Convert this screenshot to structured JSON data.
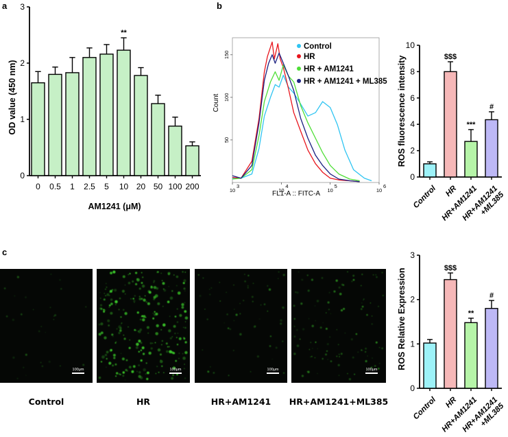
{
  "panel_labels": [
    "a",
    "b",
    "c"
  ],
  "panel_a": {
    "xlabel": "AM1241 (μM)",
    "ylabel": "OD value (450 nm)",
    "ytick_labels": [
      "0",
      "1",
      "2",
      "3"
    ],
    "significance": "**"
  },
  "panel_b_flow": {
    "xlabel": "FL1-A :: FITC-A",
    "ylabel": "Count",
    "ytick_labels": [
      "50",
      "100",
      "150"
    ],
    "xtick_labels": [
      "10",
      "10",
      "10",
      "10"
    ],
    "xtick_exponents": [
      "3",
      "4",
      "5",
      "6"
    ],
    "legend": [
      "Control",
      "HR",
      "HR + AM1241",
      "HR + AM1241 + ML385"
    ]
  },
  "panel_b_bar": {
    "ylabel": "ROS fluorescence intensity",
    "ytick_labels": [
      "0",
      "2",
      "4",
      "6",
      "8",
      "10"
    ],
    "category_labels": [
      "Control",
      "HR",
      "HR+AM1241",
      "HR+AM1241\n+ML385"
    ],
    "annotations": [
      "",
      "$$$",
      "***",
      "#"
    ]
  },
  "panel_c_images": {
    "captions": [
      "Control",
      "HR",
      "HR+AM1241",
      "HR+AM1241+ML385"
    ],
    "scale_bar": "100μm"
  },
  "panel_c_bar": {
    "ylabel": "ROS Relative Expression",
    "ytick_labels": [
      "0",
      "1",
      "2",
      "3"
    ],
    "category_labels": [
      "Control",
      "HR",
      "HR+AM1241",
      "HR+AM1241\n+ML385"
    ],
    "annotations": [
      "",
      "$$$",
      "**",
      "#"
    ]
  },
  "colors": {
    "bar_a": "#c6f0c6",
    "control": "#9df2f8",
    "hr": "#f6b8b8",
    "hr_am1241": "#b6f4a8",
    "hr_am1241_ml385": "#bdb8f6",
    "flow_control": "#2ec4f2",
    "flow_hr": "#e8141c",
    "flow_am1241": "#4ede36",
    "flow_ml385": "#1a1f80",
    "fluorescence": "#3ccf2a"
  },
  "chart_data": [
    {
      "type": "bar",
      "categories": [
        "0",
        "0.5",
        "1",
        "2.5",
        "5",
        "10",
        "20",
        "50",
        "100",
        "200"
      ],
      "values": [
        1.65,
        1.8,
        1.83,
        2.1,
        2.16,
        2.23,
        1.78,
        1.28,
        0.88,
        0.53
      ],
      "errors": [
        0.2,
        0.13,
        0.27,
        0.17,
        0.17,
        0.22,
        0.14,
        0.15,
        0.16,
        0.07
      ],
      "title": "",
      "xlabel": "AM1241 (μM)",
      "ylabel": "OD value (450 nm)",
      "ylim": [
        0,
        3
      ],
      "grid": false
    },
    {
      "type": "line",
      "xlabel": "FL1-A :: FITC-A",
      "ylabel": "Count",
      "xscale": "log",
      "xlim": [
        1000,
        1000000
      ],
      "ylim": [
        0,
        170
      ],
      "legend": "top-right",
      "series": [
        {
          "name": "Control",
          "x": [
            1000,
            1500,
            2500,
            3500,
            4500,
            6000,
            7500,
            9000,
            11000,
            14000,
            18000,
            25000,
            35000,
            50000,
            70000,
            100000,
            140000,
            200000,
            300000,
            500000,
            700000
          ],
          "y": [
            5,
            5,
            10,
            40,
            78,
            100,
            115,
            112,
            126,
            112,
            105,
            92,
            78,
            82,
            95,
            88,
            68,
            38,
            15,
            5,
            2
          ]
        },
        {
          "name": "HR",
          "x": [
            1000,
            1500,
            2500,
            3500,
            4500,
            5200,
            6500,
            7200,
            8500,
            9500,
            11000,
            14000,
            18000,
            25000,
            35000,
            50000,
            70000,
            100000,
            150000,
            250000,
            400000
          ],
          "y": [
            6,
            5,
            25,
            75,
            130,
            148,
            165,
            145,
            163,
            145,
            135,
            110,
            82,
            60,
            38,
            22,
            12,
            5,
            3,
            2,
            1
          ]
        },
        {
          "name": "HR + AM1241",
          "x": [
            1000,
            1500,
            2500,
            3500,
            4500,
            6000,
            7500,
            9000,
            11000,
            14000,
            18000,
            25000,
            35000,
            50000,
            70000,
            100000,
            150000,
            250000,
            400000
          ],
          "y": [
            4,
            5,
            15,
            55,
            95,
            118,
            130,
            120,
            138,
            125,
            118,
            90,
            70,
            52,
            35,
            20,
            10,
            4,
            2
          ]
        },
        {
          "name": "HR + AM1241 + ML385",
          "x": [
            1000,
            1500,
            2500,
            3500,
            4500,
            5500,
            6500,
            7500,
            9000,
            11000,
            14000,
            18000,
            25000,
            35000,
            50000,
            70000,
            100000,
            150000,
            250000,
            400000
          ],
          "y": [
            8,
            5,
            20,
            70,
            120,
            140,
            150,
            140,
            152,
            140,
            125,
            108,
            75,
            52,
            32,
            20,
            10,
            4,
            2,
            1
          ]
        }
      ]
    },
    {
      "type": "bar",
      "categories": [
        "Control",
        "HR",
        "HR+AM1241",
        "HR+AM1241 +ML385"
      ],
      "values": [
        1.0,
        8.0,
        2.7,
        4.35
      ],
      "errors": [
        0.15,
        0.75,
        0.9,
        0.6
      ],
      "annotations": [
        "",
        "$$$",
        "***",
        "#"
      ],
      "title": "",
      "xlabel": "",
      "ylabel": "ROS fluorescence intensity",
      "ylim": [
        0,
        10
      ],
      "grid": false
    },
    {
      "type": "bar",
      "categories": [
        "Control",
        "HR",
        "HR+AM1241",
        "HR+AM1241 +ML385"
      ],
      "values": [
        1.02,
        2.45,
        1.48,
        1.8
      ],
      "errors": [
        0.08,
        0.15,
        0.1,
        0.18
      ],
      "annotations": [
        "",
        "$$$",
        "**",
        "#"
      ],
      "title": "",
      "xlabel": "",
      "ylabel": "ROS Relative Expression",
      "ylim": [
        0,
        3
      ],
      "grid": false
    }
  ]
}
